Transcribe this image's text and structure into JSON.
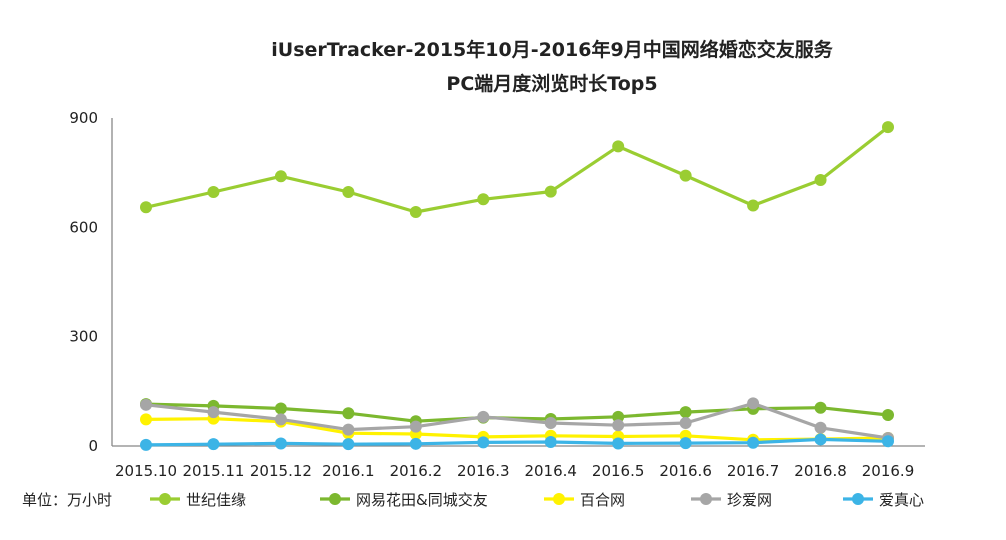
{
  "chart_data": {
    "type": "line",
    "title": "iUserTracker-2015年10月-2016年9月中国网络婚恋交友服务",
    "subtitle": "PC端月度浏览时长Top5",
    "unit_label": "单位：万小时",
    "categories": [
      "2015.10",
      "2015.11",
      "2015.12",
      "2016.1",
      "2016.2",
      "2016.3",
      "2016.4",
      "2016.5",
      "2016.6",
      "2016.7",
      "2016.8",
      "2016.9"
    ],
    "ylim": [
      0,
      900
    ],
    "yticks": [
      "0",
      "300",
      "600",
      "900"
    ],
    "grid": false,
    "legend_position": "bottom",
    "series": [
      {
        "name": "世纪佳缘",
        "color": "#9ACD32",
        "values": [
          655,
          697,
          740,
          697,
          642,
          677,
          698,
          822,
          742,
          660,
          730,
          875
        ]
      },
      {
        "name": "网易花田&同城交友",
        "color": "#7CB82F",
        "values": [
          115,
          110,
          103,
          90,
          68,
          78,
          74,
          80,
          93,
          102,
          105,
          85
        ]
      },
      {
        "name": "百合网",
        "color": "#FFF200",
        "values": [
          73,
          75,
          67,
          35,
          33,
          25,
          28,
          26,
          28,
          17,
          19,
          22
        ]
      },
      {
        "name": "珍爱网",
        "color": "#A6A6A6",
        "values": [
          113,
          93,
          73,
          45,
          53,
          80,
          63,
          57,
          63,
          117,
          50,
          22
        ]
      },
      {
        "name": "爱真心",
        "color": "#3CB4E6",
        "values": [
          3,
          5,
          7,
          5,
          6,
          10,
          11,
          7,
          8,
          9,
          18,
          13
        ]
      }
    ]
  }
}
